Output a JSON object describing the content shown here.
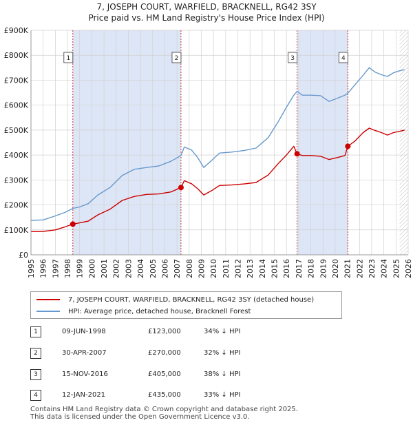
{
  "title_line1": "7, JOSEPH COURT, WARFIELD, BRACKNELL, RG42 3SY",
  "title_line2": "Price paid vs. HM Land Registry's House Price Index (HPI)",
  "colors": {
    "property": "#cc0000",
    "hpi": "#6699cc",
    "shade": "#dde6f6",
    "grid": "#d0d0d0"
  },
  "chart_data": {
    "type": "line",
    "title": "7, JOSEPH COURT, WARFIELD, BRACKNELL, RG42 3SY — Price paid vs. HM Land Registry's House Price Index (HPI)",
    "xlim": [
      1995,
      2026
    ],
    "ylim": [
      0,
      900000
    ],
    "x_ticks": [
      "1995",
      "1996",
      "1997",
      "1998",
      "1999",
      "2000",
      "2001",
      "2002",
      "2003",
      "2004",
      "2005",
      "2006",
      "2007",
      "2008",
      "2009",
      "2010",
      "2011",
      "2012",
      "2013",
      "2014",
      "2015",
      "2016",
      "2017",
      "2018",
      "2019",
      "2020",
      "2021",
      "2022",
      "2023",
      "2024",
      "2025",
      "2026"
    ],
    "y_ticks": [
      {
        "value": 0,
        "label": "£0"
      },
      {
        "value": 100000,
        "label": "£100K"
      },
      {
        "value": 200000,
        "label": "£200K"
      },
      {
        "value": 300000,
        "label": "£300K"
      },
      {
        "value": 400000,
        "label": "£400K"
      },
      {
        "value": 500000,
        "label": "£500K"
      },
      {
        "value": 600000,
        "label": "£600K"
      },
      {
        "value": 700000,
        "label": "£700K"
      },
      {
        "value": 800000,
        "label": "£800K"
      },
      {
        "value": 900000,
        "label": "£900K"
      }
    ],
    "shaded_periods": [
      [
        1998.44,
        2007.33
      ],
      [
        2016.87,
        2021.04
      ]
    ],
    "projection_start": 2025.3,
    "series": [
      {
        "name": "7, JOSEPH COURT, WARFIELD, BRACKNELL, RG42 3SY (detached house)",
        "color": "#cc0000",
        "points": [
          [
            1995.0,
            93000
          ],
          [
            1996.0,
            94000
          ],
          [
            1997.0,
            100000
          ],
          [
            1997.8,
            112000
          ],
          [
            1998.44,
            123000
          ],
          [
            1999.0,
            128000
          ],
          [
            1999.7,
            135000
          ],
          [
            2000.5,
            160000
          ],
          [
            2001.5,
            183000
          ],
          [
            2002.5,
            218000
          ],
          [
            2003.5,
            234000
          ],
          [
            2004.5,
            242000
          ],
          [
            2005.5,
            244000
          ],
          [
            2006.5,
            252000
          ],
          [
            2007.33,
            270000
          ],
          [
            2007.6,
            297000
          ],
          [
            2008.2,
            285000
          ],
          [
            2008.7,
            265000
          ],
          [
            2009.2,
            240000
          ],
          [
            2009.8,
            256000
          ],
          [
            2010.5,
            278000
          ],
          [
            2011.5,
            280000
          ],
          [
            2012.5,
            284000
          ],
          [
            2013.5,
            290000
          ],
          [
            2014.5,
            320000
          ],
          [
            2015.3,
            365000
          ],
          [
            2016.0,
            400000
          ],
          [
            2016.6,
            435000
          ],
          [
            2016.87,
            405000
          ],
          [
            2017.3,
            398000
          ],
          [
            2018.0,
            398000
          ],
          [
            2018.8,
            395000
          ],
          [
            2019.5,
            382000
          ],
          [
            2020.2,
            390000
          ],
          [
            2020.8,
            398000
          ],
          [
            2021.04,
            435000
          ],
          [
            2021.6,
            455000
          ],
          [
            2022.3,
            490000
          ],
          [
            2022.8,
            508000
          ],
          [
            2023.3,
            498000
          ],
          [
            2023.8,
            490000
          ],
          [
            2024.3,
            480000
          ],
          [
            2024.8,
            490000
          ],
          [
            2025.3,
            495000
          ],
          [
            2025.7,
            500000
          ]
        ]
      },
      {
        "name": "HPI: Average price, detached house, Bracknell Forest",
        "color": "#6699cc",
        "points": [
          [
            1995.0,
            138000
          ],
          [
            1996.0,
            140000
          ],
          [
            1997.0,
            156000
          ],
          [
            1997.8,
            170000
          ],
          [
            1998.44,
            186000
          ],
          [
            1999.0,
            192000
          ],
          [
            1999.7,
            205000
          ],
          [
            2000.5,
            240000
          ],
          [
            2001.5,
            270000
          ],
          [
            2002.5,
            318000
          ],
          [
            2003.5,
            343000
          ],
          [
            2004.5,
            350000
          ],
          [
            2005.5,
            356000
          ],
          [
            2006.5,
            375000
          ],
          [
            2007.33,
            398000
          ],
          [
            2007.6,
            432000
          ],
          [
            2008.2,
            420000
          ],
          [
            2008.7,
            390000
          ],
          [
            2009.2,
            350000
          ],
          [
            2009.8,
            376000
          ],
          [
            2010.5,
            408000
          ],
          [
            2011.5,
            412000
          ],
          [
            2012.5,
            418000
          ],
          [
            2013.5,
            428000
          ],
          [
            2014.5,
            470000
          ],
          [
            2015.3,
            532000
          ],
          [
            2016.0,
            592000
          ],
          [
            2016.6,
            640000
          ],
          [
            2016.87,
            655000
          ],
          [
            2017.3,
            640000
          ],
          [
            2018.0,
            640000
          ],
          [
            2018.8,
            638000
          ],
          [
            2019.5,
            615000
          ],
          [
            2020.2,
            628000
          ],
          [
            2020.8,
            640000
          ],
          [
            2021.04,
            648000
          ],
          [
            2021.6,
            680000
          ],
          [
            2022.3,
            720000
          ],
          [
            2022.8,
            750000
          ],
          [
            2023.3,
            732000
          ],
          [
            2023.8,
            722000
          ],
          [
            2024.3,
            715000
          ],
          [
            2024.8,
            730000
          ],
          [
            2025.3,
            738000
          ],
          [
            2025.7,
            742000
          ]
        ]
      }
    ],
    "sales": [
      {
        "num": "1",
        "x": 1998.44,
        "value": 123000
      },
      {
        "num": "2",
        "x": 2007.33,
        "value": 270000
      },
      {
        "num": "3",
        "x": 2016.87,
        "value": 405000
      },
      {
        "num": "4",
        "x": 2021.04,
        "value": 435000
      }
    ]
  },
  "legend": {
    "property": "7, JOSEPH COURT, WARFIELD, BRACKNELL, RG42 3SY (detached house)",
    "hpi": "HPI: Average price, detached house, Bracknell Forest"
  },
  "sales_table": [
    {
      "num": "1",
      "date": "09-JUN-1998",
      "price": "£123,000",
      "hpi": "34% ↓ HPI"
    },
    {
      "num": "2",
      "date": "30-APR-2007",
      "price": "£270,000",
      "hpi": "32% ↓ HPI"
    },
    {
      "num": "3",
      "date": "15-NOV-2016",
      "price": "£405,000",
      "hpi": "38% ↓ HPI"
    },
    {
      "num": "4",
      "date": "12-JAN-2021",
      "price": "£435,000",
      "hpi": "33% ↓ HPI"
    }
  ],
  "footer": {
    "line1": "Contains HM Land Registry data © Crown copyright and database right 2025.",
    "line2": "This data is licensed under the Open Government Licence v3.0."
  }
}
